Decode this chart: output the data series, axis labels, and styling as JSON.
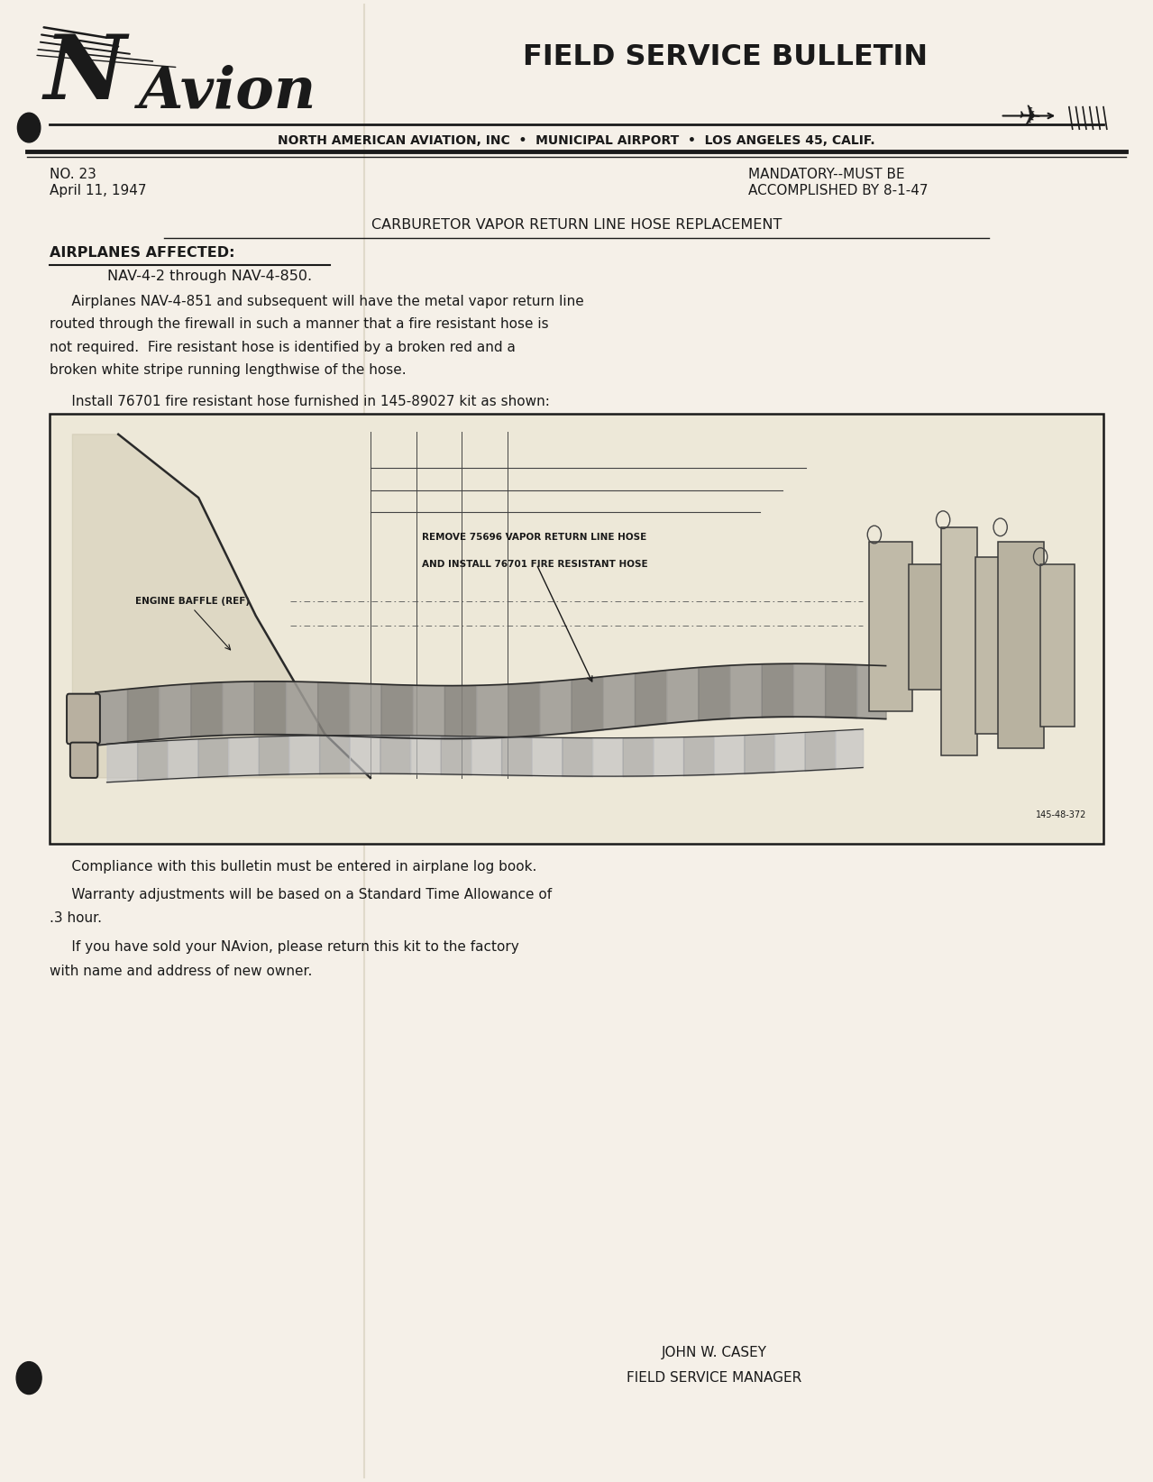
{
  "bg_color": "#f5f0e8",
  "page_width": 12.79,
  "page_height": 16.44,
  "header_title": "FIELD SERVICE BULLETIN",
  "company_subtitle": "NORTH AMERICAN AVIATION, INC  •  MUNICIPAL AIRPORT  •  LOS ANGELES 45, CALIF.",
  "bulletin_no": "NO. 23",
  "bulletin_date": "April 11, 1947",
  "mandatory_line1": "MANDATORY--MUST BE",
  "mandatory_line2": "ACCOMPLISHED BY 8-1-47",
  "doc_title": "CARBURETOR VAPOR RETURN LINE HOSE REPLACEMENT",
  "section_affected": "AIRPLANES AFFECTED:",
  "affected_planes": "NAV-4-2 through NAV-4-850.",
  "para1_line1": "     Airplanes NAV-4-851 and subsequent will have the metal vapor return line",
  "para1_line2": "routed through the firewall in such a manner that a fire resistant hose is",
  "para1_line3": "not required.  Fire resistant hose is identified by a broken red and a",
  "para1_line4": "broken white stripe running lengthwise of the hose.",
  "para2": "     Install 76701 fire resistant hose furnished in 145-89027 kit as shown:",
  "para3": "     Compliance with this bulletin must be entered in airplane log book.",
  "para4_line1": "     Warranty adjustments will be based on a Standard Time Allowance of",
  "para4_line2": ".3 hour.",
  "para5_line1": "     If you have sold your NAvion, please return this kit to the factory",
  "para5_line2": "with name and address of new owner.",
  "signature_name": "JOHN W. CASEY",
  "signature_title": "FIELD SERVICE MANAGER",
  "text_color": "#1a1a1a",
  "diagram_label1": "REMOVE 75696 VAPOR RETURN LINE HOSE",
  "diagram_label2": "AND INSTALL 76701 FIRE RESISTANT HOSE",
  "diagram_label3": "ENGINE BAFFLE (REF)",
  "diagram_ref": "145-48-372",
  "diagram_bg": "#ede8d8"
}
